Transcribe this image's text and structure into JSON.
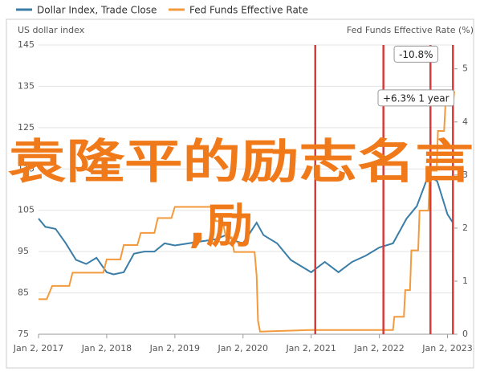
{
  "chart_data": {
    "type": "line",
    "y_label": "US dollar index",
    "y2_label": "Fed Funds Effective Rate (%)",
    "xlim": [
      2017,
      2023.1
    ],
    "xticks": [
      {
        "value": 2017,
        "label": "Jan 2, 2017"
      },
      {
        "value": 2018,
        "label": "Jan 2, 2018"
      },
      {
        "value": 2019,
        "label": "Jan 2, 2019"
      },
      {
        "value": 2020,
        "label": "Jan 2, 2020"
      },
      {
        "value": 2021,
        "label": "Jan 2, 2021"
      },
      {
        "value": 2022,
        "label": "Jan 2, 2022"
      },
      {
        "value": 2023,
        "label": "Jan 2, 2023"
      }
    ],
    "ylim": [
      75,
      145
    ],
    "yticks": [
      75,
      85,
      95,
      105,
      115,
      125,
      135,
      145
    ],
    "y2lim": [
      0,
      5.45
    ],
    "y2ticks": [
      0,
      1,
      2,
      3,
      4,
      5
    ],
    "grid": true,
    "series": [
      {
        "name": "Dollar Index, Trade Close",
        "color": "#3a7ea8",
        "x": [
          2017,
          2017.1,
          2017.25,
          2017.4,
          2017.55,
          2017.7,
          2017.85,
          2018,
          2018.1,
          2018.25,
          2018.4,
          2018.55,
          2018.7,
          2018.85,
          2019,
          2019.2,
          2019.4,
          2019.6,
          2019.75,
          2019.9,
          2020,
          2020.2,
          2020.3,
          2020.5,
          2020.7,
          2020.9,
          2021,
          2021.2,
          2021.4,
          2021.6,
          2021.8,
          2022,
          2022.2,
          2022.4,
          2022.55,
          2022.72,
          2022.85,
          2023,
          2023.08
        ],
        "values": [
          103,
          101,
          100.5,
          97,
          93,
          92,
          93.5,
          90,
          89.5,
          90,
          94.5,
          95,
          95,
          97,
          96.5,
          97,
          97.5,
          98,
          99,
          97.5,
          97,
          102,
          99,
          97,
          93,
          91,
          90,
          92.5,
          90,
          92.5,
          94,
          96,
          97,
          103,
          106,
          113.5,
          112,
          104,
          102
        ]
      },
      {
        "name": "Fed Funds Effective Rate",
        "color": "#f39a3c",
        "axis": "y2",
        "x": [
          2017,
          2017.12,
          2017.2,
          2017.45,
          2017.5,
          2017.95,
          2018,
          2018.2,
          2018.25,
          2018.45,
          2018.5,
          2018.7,
          2018.75,
          2018.95,
          2019,
          2019.55,
          2019.6,
          2019.7,
          2019.75,
          2019.83,
          2019.87,
          2020.17,
          2020.2,
          2020.22,
          2020.25,
          2021,
          2022,
          2022.2,
          2022.22,
          2022.36,
          2022.38,
          2022.45,
          2022.47,
          2022.57,
          2022.59,
          2022.72,
          2022.74,
          2022.84,
          2022.86,
          2022.95,
          2022.97,
          2023.08,
          2023.1
        ],
        "values": [
          0.66,
          0.66,
          0.91,
          0.91,
          1.16,
          1.16,
          1.41,
          1.41,
          1.68,
          1.68,
          1.91,
          1.91,
          2.19,
          2.19,
          2.4,
          2.4,
          2.13,
          2.13,
          1.83,
          1.83,
          1.55,
          1.55,
          1.1,
          0.25,
          0.05,
          0.08,
          0.08,
          0.08,
          0.33,
          0.33,
          0.83,
          0.83,
          1.58,
          1.58,
          2.33,
          2.33,
          3.08,
          3.08,
          3.83,
          3.83,
          4.33,
          4.33,
          4.58
        ]
      }
    ],
    "events": [
      2021.06,
      2022.06,
      2022.75,
      2023.08
    ],
    "event_color": "#d93a3a",
    "annotations": [
      {
        "text": "-10.8%",
        "x": 2023.08,
        "y": 142.8
      },
      {
        "text": "+6.3% 1 year",
        "x": 2023.08,
        "y": 132.2
      }
    ],
    "overlay": [
      "袁隆平的励志名言",
      ",励"
    ]
  }
}
